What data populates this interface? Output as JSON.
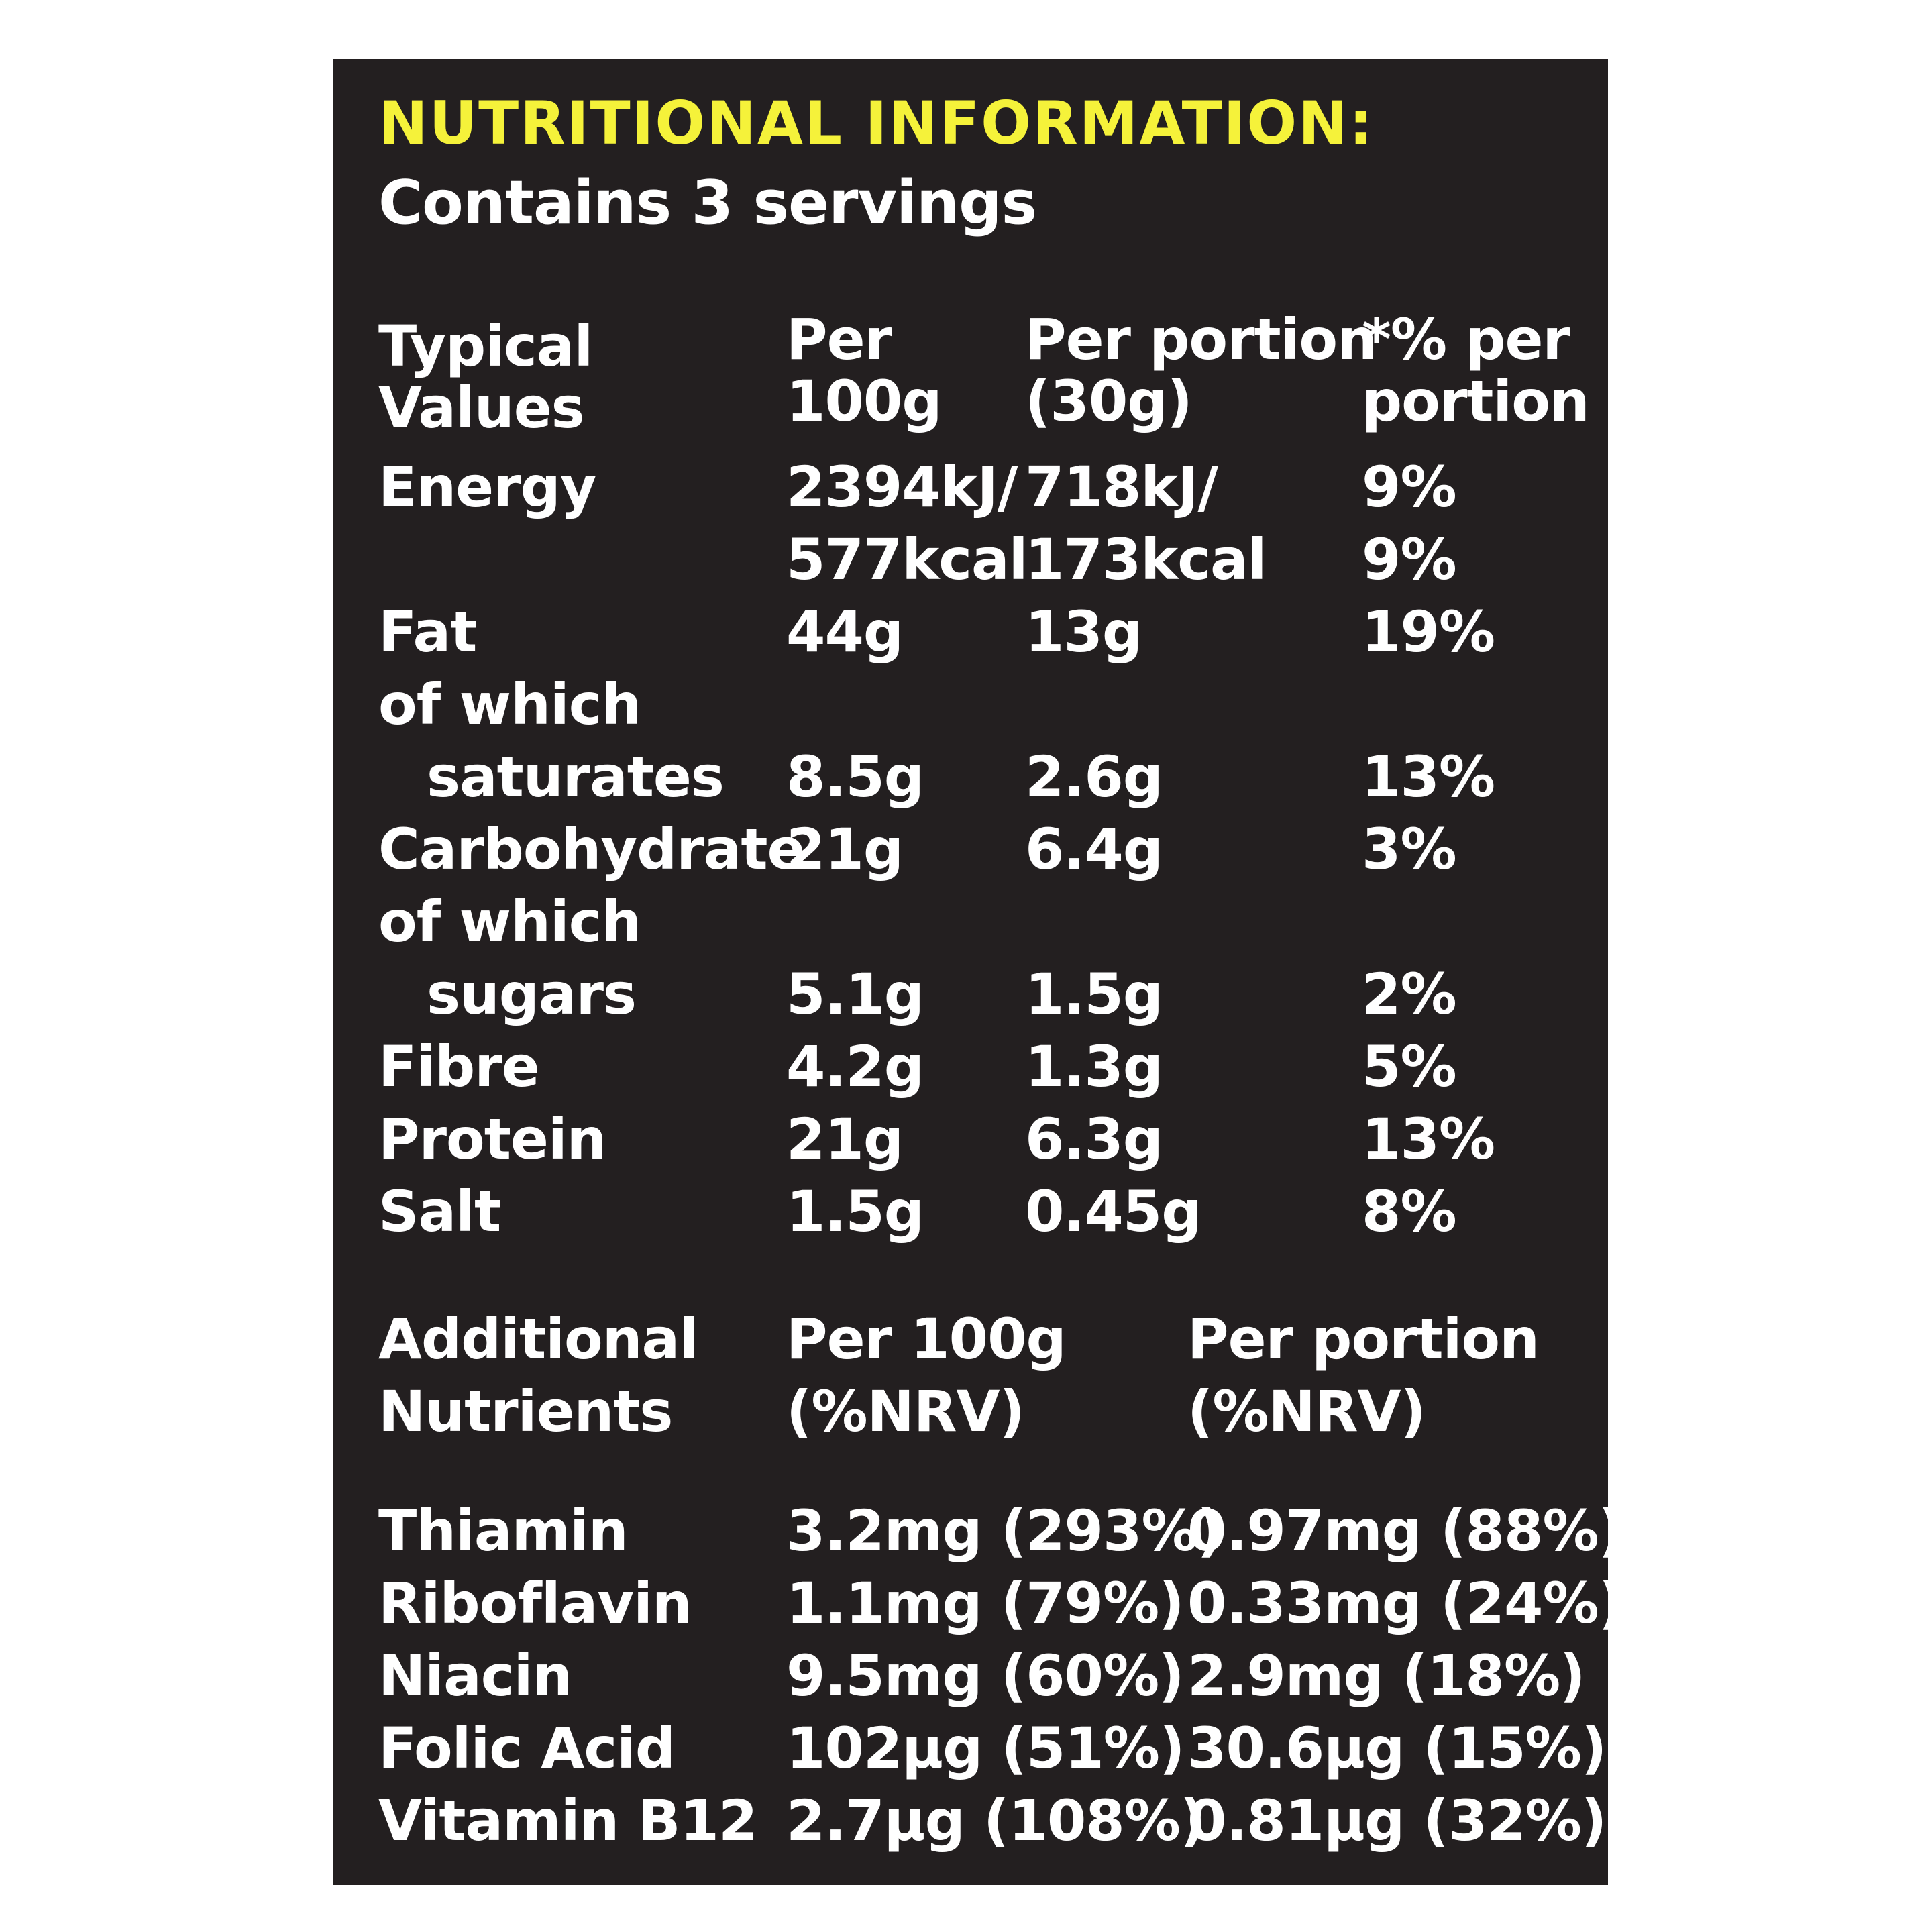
{
  "title": "NUTRITIONAL INFORMATION:",
  "subtitle": "Contains 3 servings",
  "accent_color": "#f5f23a",
  "panel_color": "#231f20",
  "table1": {
    "headers": {
      "col1_line1": "Typical",
      "col1_line2": "Values",
      "col2_line1": "Per",
      "col2_line2": "100g",
      "col3_line1": "Per portion",
      "col3_line2": "(30g)",
      "col4_line1": "*% per",
      "col4_line2": "portion"
    },
    "rows": [
      {
        "label": "Energy",
        "per100": "2394kJ/",
        "portion": "718kJ/",
        "pct": "9%"
      },
      {
        "label": "",
        "per100": "577kcal",
        "portion": "173kcal",
        "pct": "9%"
      },
      {
        "label": "Fat",
        "per100": "44g",
        "portion": "13g",
        "pct": "19%"
      },
      {
        "label": "of which",
        "per100": "",
        "portion": "",
        "pct": ""
      },
      {
        "label": "saturates",
        "per100": "8.5g",
        "portion": "2.6g",
        "pct": "13%"
      },
      {
        "label": "Carbohydrate",
        "per100": "21g",
        "portion": "6.4g",
        "pct": "3%"
      },
      {
        "label": "of which",
        "per100": "",
        "portion": "",
        "pct": ""
      },
      {
        "label": "sugars",
        "per100": "5.1g",
        "portion": "1.5g",
        "pct": "2%"
      },
      {
        "label": "Fibre",
        "per100": "4.2g",
        "portion": "1.3g",
        "pct": "5%"
      },
      {
        "label": "Protein",
        "per100": "21g",
        "portion": "6.3g",
        "pct": "13%"
      },
      {
        "label": "Salt",
        "per100": "1.5g",
        "portion": "0.45g",
        "pct": "8%"
      }
    ]
  },
  "table2": {
    "headers": {
      "col1_line1": "Additional",
      "col1_line2": "Nutrients",
      "col2_line1": "Per 100g",
      "col2_line2": "(%NRV)",
      "col3_line1": "Per portion",
      "col3_line2": "(%NRV)"
    },
    "rows": [
      {
        "label": "Thiamin",
        "per100": "3.2mg (293%)",
        "portion": "0.97mg (88%)"
      },
      {
        "label": "Riboflavin",
        "per100": "1.1mg (79%)",
        "portion": "0.33mg (24%)"
      },
      {
        "label": "Niacin",
        "per100": "9.5mg (60%)",
        "portion": "2.9mg (18%)"
      },
      {
        "label": "Folic Acid",
        "per100": "102µg (51%)",
        "portion": "30.6µg (15%)"
      },
      {
        "label": "Vitamin B12",
        "per100": "2.7µg (108%)",
        "portion": "0.81µg (32%)"
      }
    ]
  }
}
